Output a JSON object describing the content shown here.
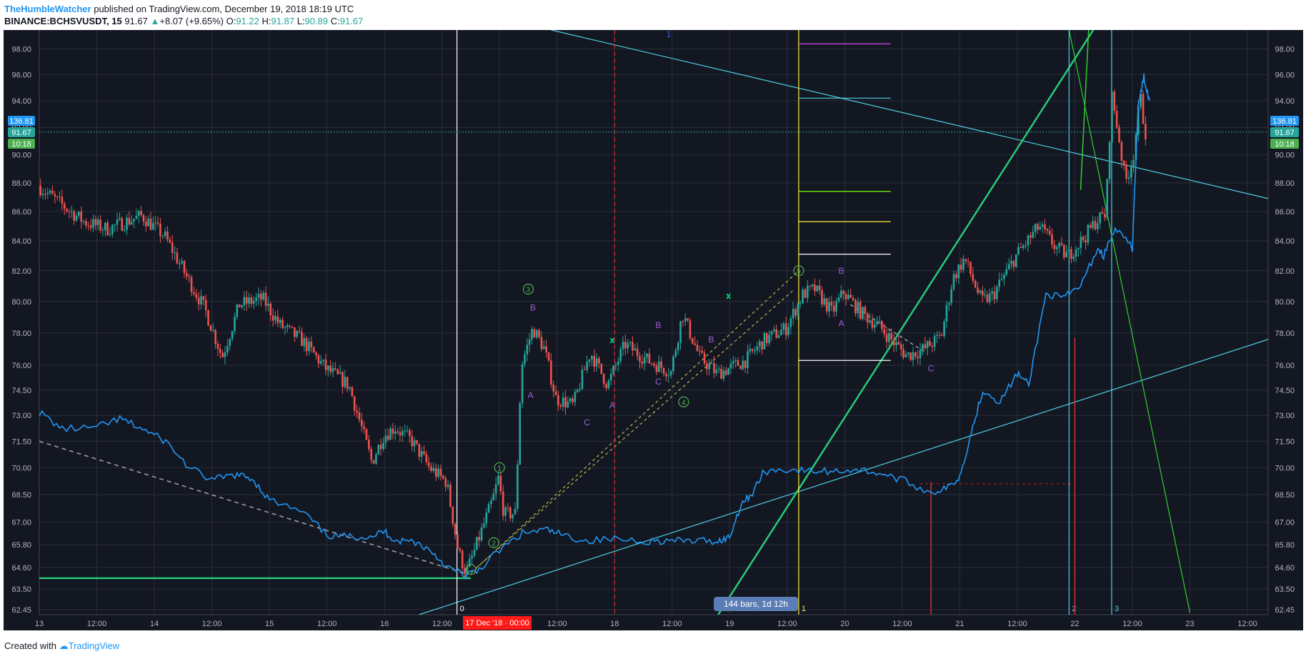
{
  "header": {
    "author": "TheHumbleWatcher",
    "published": "published on TradingView.com, December 19, 2018 18:19 UTC",
    "symbol": "BINANCE:BCHSVUSDT, 15",
    "last": "91.67",
    "change": "+8.07 (+9.65%)",
    "o_label": "O:",
    "o": "91.22",
    "h_label": "H:",
    "h": "91.87",
    "l_label": "L:",
    "l": "90.89",
    "c_label": "C:",
    "c": "91.67"
  },
  "footer": {
    "created": "Created with",
    "brand": "TradingView"
  },
  "colors": {
    "background": "#131722",
    "grid": "#2a2e39",
    "up": "#26a69a",
    "down": "#ef5350",
    "overlay": "#2196f3",
    "trend_cyan": "#4dd0e1",
    "trend_green": "#26d07c",
    "thin_green": "#32cd32",
    "wave_label": "#9c5fd6",
    "price_tag": "#2196f3",
    "countdown_tag": "#4caf50"
  },
  "price_tags": {
    "upper": "136.81",
    "last": "91.67",
    "countdown": "10:18"
  },
  "bars_tooltip": "144 bars, 1d 12h",
  "date_highlight": "17 Dec '18 · 00:00",
  "chart_data": {
    "type": "candlestick",
    "y_axis": {
      "scale": "log",
      "ticks": [
        "98.00",
        "96.00",
        "94.00",
        "92.00",
        "90.00",
        "88.00",
        "86.00",
        "84.00",
        "82.00",
        "80.00",
        "78.00",
        "76.00",
        "74.50",
        "73.00",
        "71.50",
        "70.00",
        "68.50",
        "67.00",
        "65.80",
        "64.60",
        "63.50",
        "62.45"
      ],
      "range": [
        62.2,
        99.5
      ]
    },
    "x_axis": {
      "ticks": [
        "13",
        "12:00",
        "14",
        "12:00",
        "15",
        "12:00",
        "16",
        "12:00",
        "17",
        "12:00",
        "18",
        "12:00",
        "19",
        "12:00",
        "20",
        "12:00",
        "21",
        "12:00",
        "22",
        "12:00",
        "23",
        "12:00"
      ],
      "day_start": 13,
      "range_days": [
        13.0,
        23.68
      ]
    },
    "price_path": [
      [
        13.0,
        87.8
      ],
      [
        13.2,
        86.5
      ],
      [
        13.4,
        85.3
      ],
      [
        13.6,
        84.8
      ],
      [
        13.9,
        85.7
      ],
      [
        14.1,
        84.3
      ],
      [
        14.3,
        81.5
      ],
      [
        14.45,
        79.5
      ],
      [
        14.6,
        76.5
      ],
      [
        14.75,
        79.8
      ],
      [
        14.95,
        80.2
      ],
      [
        15.1,
        78.5
      ],
      [
        15.3,
        77.5
      ],
      [
        15.5,
        75.8
      ],
      [
        15.7,
        74.8
      ],
      [
        15.9,
        70.3
      ],
      [
        16.0,
        71.8
      ],
      [
        16.1,
        72.3
      ],
      [
        16.25,
        71.5
      ],
      [
        16.4,
        70.0
      ],
      [
        16.55,
        69.2
      ],
      [
        16.65,
        65.5
      ],
      [
        16.72,
        64.3
      ],
      [
        16.8,
        65.6
      ],
      [
        16.95,
        68.2
      ],
      [
        17.0,
        69.4
      ],
      [
        17.05,
        67.4
      ],
      [
        17.15,
        67.5
      ],
      [
        17.2,
        76.0
      ],
      [
        17.3,
        78.3
      ],
      [
        17.4,
        77.0
      ],
      [
        17.5,
        74.0
      ],
      [
        17.65,
        73.6
      ],
      [
        17.8,
        76.8
      ],
      [
        17.95,
        74.8
      ],
      [
        18.1,
        77.3
      ],
      [
        18.3,
        76.3
      ],
      [
        18.5,
        75.6
      ],
      [
        18.6,
        79.2
      ],
      [
        18.75,
        76.5
      ],
      [
        18.9,
        75.5
      ],
      [
        19.0,
        75.8
      ],
      [
        19.15,
        76.3
      ],
      [
        19.3,
        77.5
      ],
      [
        19.5,
        78.3
      ],
      [
        19.65,
        80.5
      ],
      [
        19.75,
        80.8
      ],
      [
        19.9,
        79.3
      ],
      [
        20.0,
        80.6
      ],
      [
        20.15,
        79.3
      ],
      [
        20.3,
        78.5
      ],
      [
        20.45,
        77.3
      ],
      [
        20.55,
        76.6
      ],
      [
        20.7,
        77.0
      ],
      [
        20.85,
        77.8
      ],
      [
        20.95,
        81.5
      ],
      [
        21.05,
        82.8
      ],
      [
        21.2,
        80.0
      ],
      [
        21.3,
        80.4
      ],
      [
        21.5,
        83.0
      ],
      [
        21.7,
        85.0
      ],
      [
        21.85,
        83.5
      ],
      [
        21.95,
        83.0
      ],
      [
        22.1,
        84.3
      ],
      [
        22.2,
        85.4
      ],
      [
        22.28,
        85.8
      ],
      [
        22.33,
        94.5
      ],
      [
        22.38,
        92.0
      ],
      [
        22.45,
        88.0
      ],
      [
        22.52,
        90.0
      ],
      [
        22.58,
        94.3
      ],
      [
        22.62,
        91.67
      ]
    ],
    "overlay_series": {
      "name": "",
      "points": [
        [
          13.0,
          73.2
        ],
        [
          13.2,
          72.2
        ],
        [
          13.5,
          72.3
        ],
        [
          13.7,
          72.8
        ],
        [
          13.9,
          72.2
        ],
        [
          14.1,
          71.5
        ],
        [
          14.3,
          70.0
        ],
        [
          14.5,
          69.3
        ],
        [
          14.7,
          69.6
        ],
        [
          14.85,
          69.4
        ],
        [
          15.0,
          68.2
        ],
        [
          15.3,
          67.5
        ],
        [
          15.5,
          66.3
        ],
        [
          15.7,
          66.2
        ],
        [
          15.9,
          66.3
        ],
        [
          16.0,
          66.5
        ],
        [
          16.1,
          66.0
        ],
        [
          16.25,
          66.0
        ],
        [
          16.4,
          65.5
        ],
        [
          16.55,
          64.6
        ],
        [
          16.7,
          64.2
        ],
        [
          16.8,
          64.4
        ],
        [
          17.0,
          65.5
        ],
        [
          17.2,
          66.4
        ],
        [
          17.4,
          66.6
        ],
        [
          17.55,
          66.3
        ],
        [
          17.75,
          66.0
        ],
        [
          18.0,
          66.1
        ],
        [
          18.3,
          66.0
        ],
        [
          18.5,
          66.0
        ],
        [
          18.7,
          66.0
        ],
        [
          18.9,
          66.0
        ],
        [
          19.0,
          66.2
        ],
        [
          19.1,
          68.0
        ],
        [
          19.2,
          68.6
        ],
        [
          19.3,
          69.8
        ],
        [
          19.5,
          69.9
        ],
        [
          19.7,
          69.8
        ],
        [
          19.9,
          69.8
        ],
        [
          20.1,
          69.9
        ],
        [
          20.3,
          69.7
        ],
        [
          20.5,
          69.3
        ],
        [
          20.75,
          68.6
        ],
        [
          20.9,
          68.9
        ],
        [
          21.0,
          69.5
        ],
        [
          21.1,
          72.0
        ],
        [
          21.2,
          74.5
        ],
        [
          21.35,
          73.8
        ],
        [
          21.5,
          75.5
        ],
        [
          21.6,
          74.8
        ],
        [
          21.75,
          80.5
        ],
        [
          21.9,
          80.2
        ],
        [
          22.05,
          81.0
        ],
        [
          22.2,
          83.5
        ],
        [
          22.25,
          83.0
        ],
        [
          22.35,
          84.8
        ],
        [
          22.5,
          83.5
        ],
        [
          22.55,
          93.5
        ],
        [
          22.6,
          95.8
        ],
        [
          22.65,
          94.0
        ]
      ]
    },
    "wave_labels": [
      {
        "t": 16.75,
        "p": 64.5,
        "text": "",
        "kind": "circle"
      },
      {
        "t": 17.0,
        "p": 70.0,
        "text": "1",
        "kind": "circle"
      },
      {
        "t": 16.95,
        "p": 65.9,
        "text": "2",
        "kind": "circle"
      },
      {
        "t": 17.25,
        "p": 80.8,
        "text": "3",
        "kind": "circle"
      },
      {
        "t": 18.6,
        "p": 73.8,
        "text": "4",
        "kind": "circle"
      },
      {
        "t": 19.6,
        "p": 82.0,
        "text": "5",
        "kind": "circle"
      },
      {
        "t": 17.29,
        "p": 79.6,
        "text": "B",
        "kind": "letter"
      },
      {
        "t": 17.27,
        "p": 74.2,
        "text": "A",
        "kind": "letter"
      },
      {
        "t": 17.76,
        "p": 72.6,
        "text": "C",
        "kind": "letter"
      },
      {
        "t": 17.98,
        "p": 73.6,
        "text": "A",
        "kind": "letter"
      },
      {
        "t": 18.38,
        "p": 78.5,
        "text": "B",
        "kind": "letter"
      },
      {
        "t": 18.38,
        "p": 75.0,
        "text": "C",
        "kind": "letter"
      },
      {
        "t": 18.84,
        "p": 77.6,
        "text": "B",
        "kind": "letter"
      },
      {
        "t": 19.97,
        "p": 82.0,
        "text": "B",
        "kind": "letter"
      },
      {
        "t": 19.97,
        "p": 78.6,
        "text": "A",
        "kind": "letter"
      },
      {
        "t": 20.75,
        "p": 75.8,
        "text": "C",
        "kind": "letter"
      }
    ],
    "x_marks": [
      {
        "t": 17.98,
        "p": 77.6
      },
      {
        "t": 18.99,
        "p": 80.4
      }
    ],
    "vertical_markers": [
      {
        "t": 16.63,
        "label": "0",
        "color": "#ffffff"
      },
      {
        "t": 19.6,
        "label": "1",
        "color": "#ffeb3b"
      },
      {
        "t": 21.95,
        "label": "2",
        "color": "#4dd0e1"
      },
      {
        "t": 22.32,
        "label": "3",
        "color": "#4dd0e1"
      }
    ],
    "fib_levels": [
      {
        "p": 98.4,
        "color": "#e040fb"
      },
      {
        "p": 94.2,
        "color": "#4dd0e1"
      },
      {
        "p": 87.4,
        "color": "#76ff03"
      },
      {
        "p": 85.3,
        "color": "#ffeb3b"
      },
      {
        "p": 83.1,
        "color": "#ffffff"
      },
      {
        "p": 76.3,
        "color": "#ffffff"
      }
    ]
  }
}
